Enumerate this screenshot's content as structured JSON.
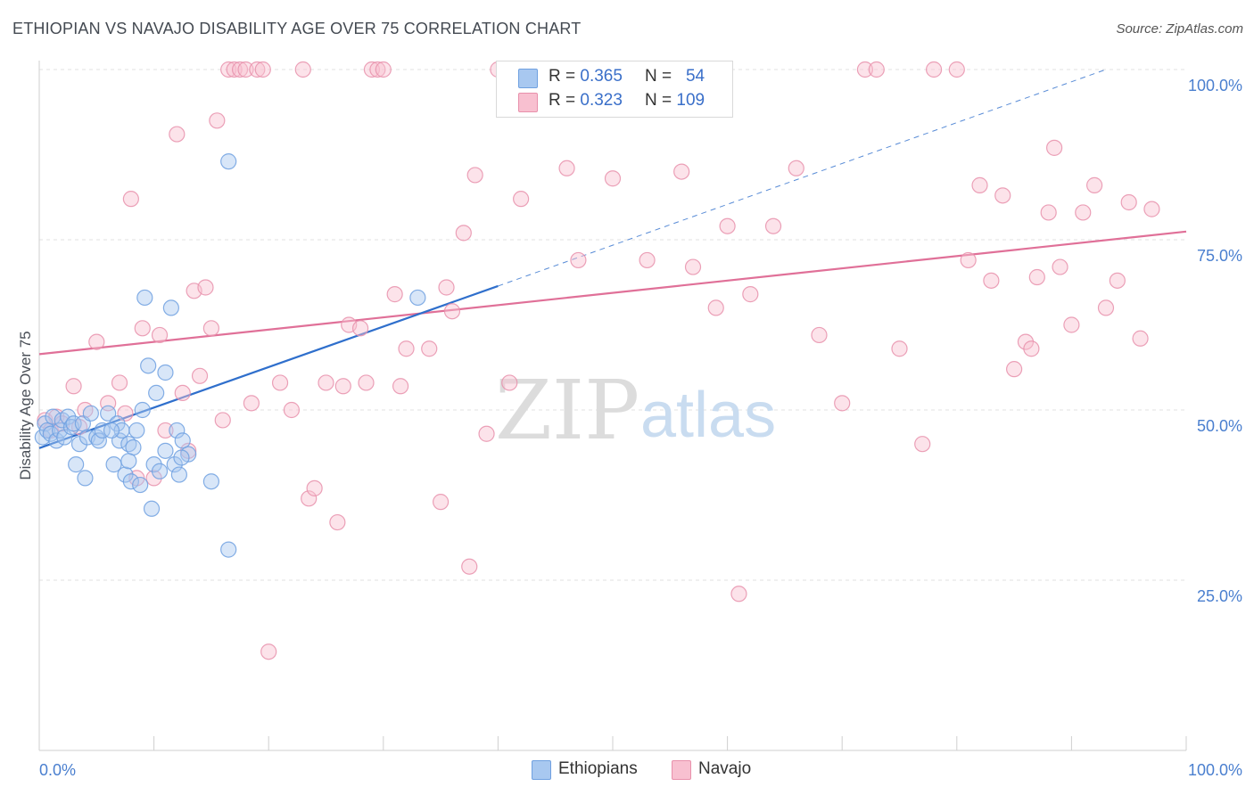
{
  "title": "ETHIOPIAN VS NAVAJO DISABILITY AGE OVER 75 CORRELATION CHART",
  "source": "Source: ZipAtlas.com",
  "watermark": {
    "zip": "ZIP",
    "atlas": "atlas"
  },
  "legend": {
    "r_label": "R =",
    "n_label": "N =",
    "entries": [
      {
        "r": "0.365",
        "n": "54",
        "color": "#a8c8f0",
        "border": "#6fa0e0"
      },
      {
        "r": "0.323",
        "n": "109",
        "color": "#f8c0d0",
        "border": "#e890ab"
      }
    ]
  },
  "bottom_legend": [
    "Ethiopians",
    "Navajo"
  ],
  "chart_data": {
    "type": "scatter",
    "title": "ETHIOPIAN VS NAVAJO DISABILITY AGE OVER 75 CORRELATION CHART",
    "xlabel": "",
    "ylabel": "Disability Age Over 75",
    "xlim": [
      0,
      100
    ],
    "ylim": [
      0,
      100
    ],
    "x_tick_labels": [
      "0.0%",
      "100.0%"
    ],
    "y_tick_labels": [
      "25.0%",
      "50.0%",
      "75.0%",
      "100.0%"
    ],
    "y_ticks": [
      25,
      50,
      75,
      100
    ],
    "grid": true,
    "legend_position": "top-center",
    "series": [
      {
        "name": "Ethiopians",
        "color": "#6fa0e0",
        "fill": "#a8c8f0",
        "trend_color": "#2f6fcc",
        "trend": {
          "x0": 0,
          "y0": 44.4,
          "x1": 40,
          "y1": 68.2,
          "dash_x_end": 93,
          "dash_y_end": 100
        },
        "points": [
          [
            0.3,
            46
          ],
          [
            0.5,
            48
          ],
          [
            0.7,
            47
          ],
          [
            1,
            46.5
          ],
          [
            1.2,
            49
          ],
          [
            1.5,
            45.5
          ],
          [
            1.8,
            47
          ],
          [
            2,
            48.5
          ],
          [
            2.2,
            46
          ],
          [
            2.5,
            49
          ],
          [
            2.8,
            47.5
          ],
          [
            3,
            48
          ],
          [
            3.2,
            42
          ],
          [
            3.5,
            45
          ],
          [
            3.8,
            48
          ],
          [
            4,
            40
          ],
          [
            4.2,
            46
          ],
          [
            4.5,
            49.5
          ],
          [
            5,
            46
          ],
          [
            5.2,
            45.5
          ],
          [
            5.5,
            47
          ],
          [
            6,
            49.5
          ],
          [
            6.5,
            42
          ],
          [
            6.8,
            48
          ],
          [
            7,
            45.5
          ],
          [
            7.2,
            47
          ],
          [
            7.5,
            40.5
          ],
          [
            7.8,
            45
          ],
          [
            8,
            39.5
          ],
          [
            8.2,
            44.5
          ],
          [
            8.5,
            47
          ],
          [
            8.8,
            39
          ],
          [
            9,
            50
          ],
          [
            9.5,
            56.5
          ],
          [
            9.8,
            35.5
          ],
          [
            10,
            42
          ],
          [
            10.2,
            52.5
          ],
          [
            10.5,
            41
          ],
          [
            11,
            55.5
          ],
          [
            11.5,
            65
          ],
          [
            11.8,
            42
          ],
          [
            12,
            47
          ],
          [
            12.5,
            45.5
          ],
          [
            13,
            43.5
          ],
          [
            9.2,
            66.5
          ],
          [
            12.2,
            40.5
          ],
          [
            12.4,
            43
          ],
          [
            11,
            44
          ],
          [
            7.8,
            42.5
          ],
          [
            16.5,
            29.5
          ],
          [
            15,
            39.5
          ],
          [
            16.5,
            86.5
          ],
          [
            33,
            66.5
          ],
          [
            6.3,
            47
          ]
        ]
      },
      {
        "name": "Navajo",
        "color": "#e890ab",
        "fill": "#f8c0d0",
        "trend_color": "#e07098",
        "trend": {
          "x0": 0,
          "y0": 58.2,
          "x1": 100,
          "y1": 76.2
        },
        "points": [
          [
            0.5,
            48.5
          ],
          [
            1,
            47
          ],
          [
            1.5,
            49
          ],
          [
            2,
            48
          ],
          [
            3,
            53.5
          ],
          [
            3.5,
            47.5
          ],
          [
            4,
            50
          ],
          [
            5,
            60
          ],
          [
            6,
            51
          ],
          [
            7,
            54
          ],
          [
            7.5,
            49.5
          ],
          [
            8,
            81
          ],
          [
            8.5,
            40
          ],
          [
            9,
            62
          ],
          [
            10,
            40
          ],
          [
            10.5,
            61
          ],
          [
            11,
            47
          ],
          [
            12,
            90.5
          ],
          [
            12.5,
            52.5
          ],
          [
            13,
            44
          ],
          [
            13.5,
            67.5
          ],
          [
            14,
            55
          ],
          [
            14.5,
            68
          ],
          [
            15,
            62
          ],
          [
            15.5,
            92.5
          ],
          [
            16,
            48.5
          ],
          [
            16.5,
            100
          ],
          [
            17,
            100
          ],
          [
            17.5,
            100
          ],
          [
            18,
            100
          ],
          [
            18.5,
            51
          ],
          [
            19,
            100
          ],
          [
            19.5,
            100
          ],
          [
            20,
            14.5
          ],
          [
            21,
            54
          ],
          [
            22,
            50
          ],
          [
            23,
            100
          ],
          [
            23.5,
            37
          ],
          [
            24,
            38.5
          ],
          [
            25,
            54
          ],
          [
            26,
            33.5
          ],
          [
            26.5,
            53.5
          ],
          [
            27,
            62.5
          ],
          [
            28,
            62
          ],
          [
            28.5,
            54
          ],
          [
            29,
            100
          ],
          [
            29.5,
            100
          ],
          [
            30,
            100
          ],
          [
            31,
            67
          ],
          [
            31.5,
            53.5
          ],
          [
            32,
            59
          ],
          [
            34,
            59
          ],
          [
            35,
            36.5
          ],
          [
            35.5,
            68
          ],
          [
            36,
            64.5
          ],
          [
            37,
            76
          ],
          [
            37.5,
            27
          ],
          [
            38,
            84.5
          ],
          [
            39,
            46.5
          ],
          [
            40,
            100
          ],
          [
            41,
            54
          ],
          [
            42,
            81
          ],
          [
            43,
            100
          ],
          [
            44,
            100
          ],
          [
            46,
            85.5
          ],
          [
            47,
            72
          ],
          [
            49,
            100
          ],
          [
            50,
            84
          ],
          [
            51,
            100
          ],
          [
            52,
            100
          ],
          [
            53,
            72
          ],
          [
            54,
            100
          ],
          [
            55,
            100
          ],
          [
            56,
            85
          ],
          [
            57,
            71
          ],
          [
            58,
            100
          ],
          [
            59,
            65
          ],
          [
            60,
            77
          ],
          [
            61,
            23
          ],
          [
            62,
            67
          ],
          [
            64,
            77
          ],
          [
            66,
            85.5
          ],
          [
            68,
            61
          ],
          [
            70,
            51
          ],
          [
            72,
            100
          ],
          [
            73,
            100
          ],
          [
            75,
            59
          ],
          [
            77,
            45
          ],
          [
            78,
            100
          ],
          [
            80,
            100
          ],
          [
            81,
            72
          ],
          [
            82,
            83
          ],
          [
            83,
            69
          ],
          [
            84,
            81.5
          ],
          [
            85,
            56
          ],
          [
            86,
            60
          ],
          [
            86.5,
            59
          ],
          [
            87,
            69.5
          ],
          [
            88,
            79
          ],
          [
            88.5,
            88.5
          ],
          [
            89,
            71
          ],
          [
            90,
            62.5
          ],
          [
            91,
            79
          ],
          [
            92,
            83
          ],
          [
            93,
            65
          ],
          [
            94,
            69
          ],
          [
            95,
            80.5
          ],
          [
            96,
            60.5
          ],
          [
            97,
            79.5
          ]
        ]
      }
    ]
  }
}
